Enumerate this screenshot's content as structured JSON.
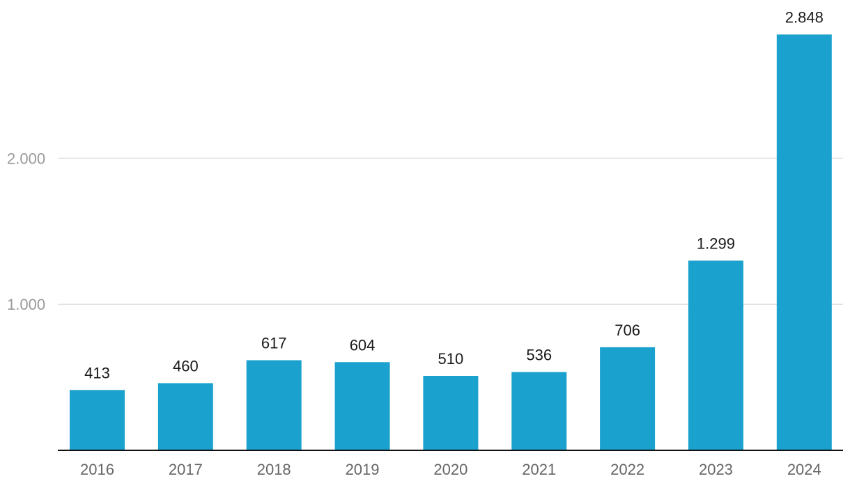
{
  "chart_data": {
    "type": "bar",
    "categories": [
      "2016",
      "2017",
      "2018",
      "2019",
      "2020",
      "2021",
      "2022",
      "2023",
      "2024"
    ],
    "values": [
      413,
      460,
      617,
      604,
      510,
      536,
      706,
      1299,
      2848
    ],
    "value_labels": [
      "413",
      "460",
      "617",
      "604",
      "510",
      "536",
      "706",
      "1.299",
      "2.848"
    ],
    "yticks": [
      {
        "value": 1000,
        "label": "1.000"
      },
      {
        "value": 2000,
        "label": "2.000"
      }
    ],
    "ylim": [
      0,
      2950
    ],
    "grid": true,
    "bar_color": "#1aa1cd",
    "title": "",
    "xlabel": "",
    "ylabel": ""
  }
}
